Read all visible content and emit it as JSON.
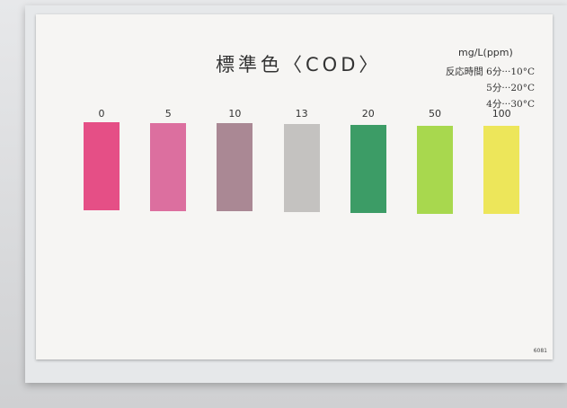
{
  "card": {
    "title": "標準色〈COD〉",
    "unit": "mg/L(ppm)",
    "reaction_time": [
      "反応時間 6分···10°C",
      "5分···20°C",
      "4分···30°C"
    ],
    "swatches": [
      {
        "label": "0",
        "color": "#e54f86"
      },
      {
        "label": "5",
        "color": "#dc6f9f"
      },
      {
        "label": "10",
        "color": "#aa8894"
      },
      {
        "label": "13",
        "color": "#c4c2c0"
      },
      {
        "label": "20",
        "color": "#3c9c66"
      },
      {
        "label": "50",
        "color": "#a8d84e"
      },
      {
        "label": "100",
        "color": "#ede65a"
      }
    ],
    "code": "6081"
  }
}
